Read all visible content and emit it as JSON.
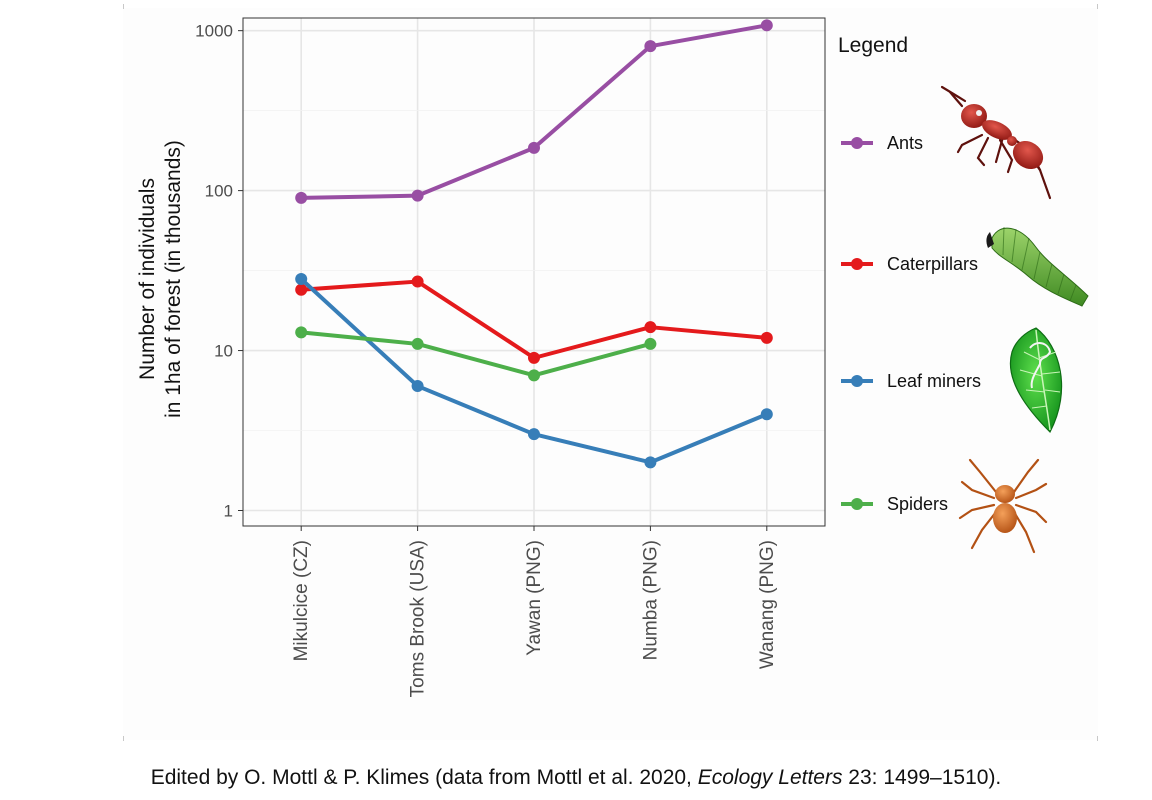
{
  "chart_data": {
    "type": "line",
    "ylabel_lines": [
      "Number of individuals",
      "in 1ha of forest (in thousands)"
    ],
    "xlabel": "",
    "y_scale": "log10",
    "ylim": [
      0.8,
      1200
    ],
    "y_ticks": [
      1,
      10,
      100,
      1000
    ],
    "y_tick_labels": [
      "1",
      "10",
      "100",
      "1000"
    ],
    "grid": true,
    "categories": [
      "Mikulcice (CZ)",
      "Toms Brook (USA)",
      "Yawan (PNG)",
      "Numba (PNG)",
      "Wanang (PNG)"
    ],
    "legend_title": "Legend",
    "legend_position": "right",
    "series": [
      {
        "name": "Ants",
        "color": "#984ea3",
        "icon": "ant-icon",
        "values": [
          90,
          93,
          185,
          800,
          1080
        ]
      },
      {
        "name": "Caterpillars",
        "color": "#e41a1c",
        "icon": "caterpillar-icon",
        "values": [
          24,
          27,
          9,
          14,
          12
        ]
      },
      {
        "name": "Leaf miners",
        "color": "#377eb8",
        "icon": "leaf-icon",
        "values": [
          28,
          6,
          3,
          2,
          4
        ]
      },
      {
        "name": "Spiders",
        "color": "#4daf4a",
        "icon": "spider-icon",
        "values": [
          13,
          11,
          7,
          11,
          null
        ]
      }
    ]
  },
  "footer": {
    "credit_before": "Edited by O. Mottl & P. Klimes (data from Mottl et al. 2020, ",
    "credit_journal": "Ecology Letters",
    "credit_after": " 23: 1499–1510)."
  }
}
